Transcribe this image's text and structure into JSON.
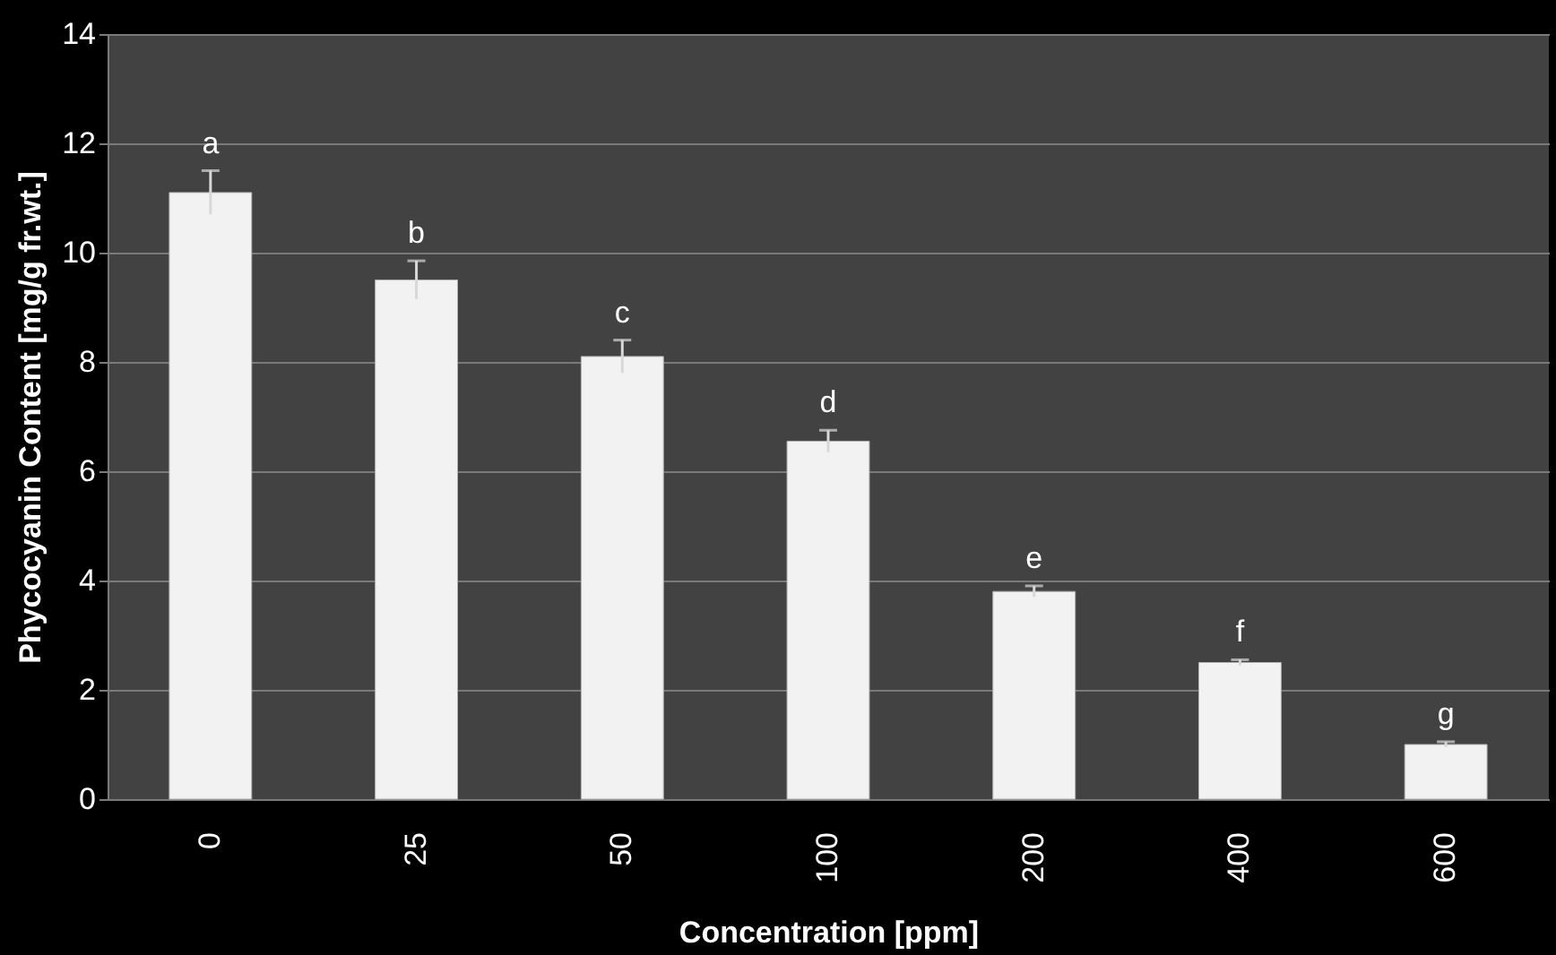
{
  "chart_data": {
    "type": "bar",
    "xlabel": "Concentration [ppm]",
    "ylabel": "Phycocyanin Content [mg/g fr.wt.]",
    "categories": [
      "0",
      "25",
      "50",
      "100",
      "200",
      "400",
      "600"
    ],
    "values": [
      11.1,
      9.5,
      8.1,
      6.55,
      3.8,
      2.5,
      1.0
    ],
    "errors": [
      0.4,
      0.35,
      0.3,
      0.2,
      0.1,
      0.05,
      0.05
    ],
    "color": "#f2f2f2",
    "ylim": [
      0,
      14
    ],
    "yticks": [
      0,
      2,
      4,
      6,
      8,
      10,
      12,
      14
    ],
    "grid": "y",
    "annotations": [
      {
        "text": "a",
        "x": "0",
        "y": 11.5
      },
      {
        "text": "b",
        "x": "25",
        "y": 9.85
      },
      {
        "text": "c",
        "x": "50",
        "y": 8.4
      },
      {
        "text": "d",
        "x": "100",
        "y": 6.75
      },
      {
        "text": "e",
        "x": "200",
        "y": 3.9
      },
      {
        "text": "f",
        "x": "400",
        "y": 2.55
      },
      {
        "text": "g",
        "x": "600",
        "y": 1.05
      }
    ]
  }
}
